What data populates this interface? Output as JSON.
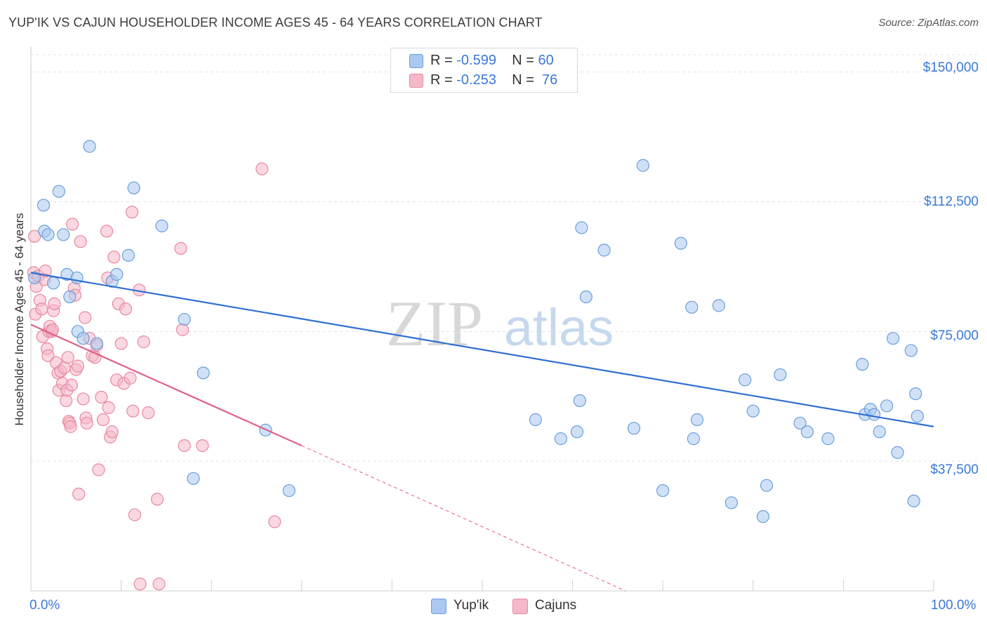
{
  "title": "YUP'IK VS CAJUN HOUSEHOLDER INCOME AGES 45 - 64 YEARS CORRELATION CHART",
  "source": "Source: ZipAtlas.com",
  "watermark": {
    "zip": "ZIP",
    "atlas": "atlas"
  },
  "legend": {
    "rows": [
      {
        "r_label": "R = ",
        "r_value": "-0.599",
        "n_label": "N = ",
        "n_value": "60",
        "color": "#aac8f0"
      },
      {
        "r_label": "R = ",
        "r_value": "-0.253",
        "n_label": "N = ",
        "n_value": "76",
        "color": "#f5b8c8"
      }
    ]
  },
  "bottom_legend": [
    {
      "label": "Yup'ik",
      "color": "#aac8f0"
    },
    {
      "label": "Cajuns",
      "color": "#f5b8c8"
    }
  ],
  "chart_data": {
    "type": "scatter",
    "title": "YUP'IK VS CAJUN HOUSEHOLDER INCOME AGES 45 - 64 YEARS CORRELATION CHART",
    "xlabel": "",
    "ylabel": "Householder Income Ages 45 - 64 years",
    "xlim": [
      0,
      100
    ],
    "ylim": [
      0,
      155000
    ],
    "x_tick_labels": [
      "0.0%",
      "100.0%"
    ],
    "y_ticks": [
      37500,
      75000,
      112500,
      150000
    ],
    "y_tick_labels": [
      "$37,500",
      "$75,000",
      "$112,500",
      "$150,000"
    ],
    "grid": true,
    "series": [
      {
        "name": "Yup'ik",
        "color": "#aac8f0",
        "stroke": "#6a9edc",
        "line_color": "#2f6fd0",
        "trend": {
          "x": [
            0,
            100
          ],
          "y": [
            92000,
            47500
          ],
          "dashed_to": null
        },
        "points": [
          [
            0.4,
            90500
          ],
          [
            1.5,
            104000
          ],
          [
            1.4,
            111500
          ],
          [
            1.9,
            103000
          ],
          [
            2.5,
            89000
          ],
          [
            3.1,
            115500
          ],
          [
            3.6,
            103000
          ],
          [
            4.0,
            91500
          ],
          [
            4.3,
            85000
          ],
          [
            5.1,
            90500
          ],
          [
            5.2,
            75000
          ],
          [
            5.8,
            73000
          ],
          [
            6.5,
            128500
          ],
          [
            7.3,
            71500
          ],
          [
            9.0,
            89500
          ],
          [
            9.5,
            91500
          ],
          [
            10.8,
            97000
          ],
          [
            11.4,
            116500
          ],
          [
            14.5,
            105500
          ],
          [
            17.0,
            78500
          ],
          [
            19.1,
            63000
          ],
          [
            18.0,
            32500
          ],
          [
            26.0,
            46500
          ],
          [
            28.6,
            29000
          ],
          [
            55.9,
            49500
          ],
          [
            58.7,
            44000
          ],
          [
            60.5,
            46000
          ],
          [
            60.8,
            55000
          ],
          [
            61.0,
            105000
          ],
          [
            61.5,
            85000
          ],
          [
            63.5,
            98500
          ],
          [
            66.8,
            47000
          ],
          [
            67.8,
            123000
          ],
          [
            70.0,
            29000
          ],
          [
            72.0,
            100500
          ],
          [
            73.2,
            82000
          ],
          [
            73.4,
            44000
          ],
          [
            73.8,
            49500
          ],
          [
            76.2,
            82500
          ],
          [
            77.6,
            25500
          ],
          [
            79.1,
            61000
          ],
          [
            80.0,
            52000
          ],
          [
            81.1,
            21500
          ],
          [
            81.5,
            30500
          ],
          [
            83.0,
            62500
          ],
          [
            85.2,
            48500
          ],
          [
            86.0,
            46000
          ],
          [
            88.3,
            44000
          ],
          [
            92.1,
            65500
          ],
          [
            92.4,
            51000
          ],
          [
            93.0,
            52500
          ],
          [
            93.4,
            51000
          ],
          [
            94.0,
            46000
          ],
          [
            94.8,
            53500
          ],
          [
            95.5,
            73000
          ],
          [
            96.0,
            40000
          ],
          [
            97.5,
            69500
          ],
          [
            97.8,
            26000
          ],
          [
            98.0,
            57000
          ],
          [
            98.2,
            50500
          ]
        ]
      },
      {
        "name": "Cajuns",
        "color": "#f5b8c8",
        "stroke": "#e8889f",
        "line_color": "#e0608a",
        "trend": {
          "x": [
            0,
            30
          ],
          "y": [
            77000,
            42000
          ],
          "dashed_to": {
            "x": 100,
            "y": -40000
          }
        },
        "points": [
          [
            0.3,
            92000
          ],
          [
            0.4,
            102500
          ],
          [
            0.5,
            80000
          ],
          [
            0.6,
            88000
          ],
          [
            0.8,
            91000
          ],
          [
            1.0,
            84000
          ],
          [
            1.2,
            81500
          ],
          [
            1.3,
            73500
          ],
          [
            1.5,
            90000
          ],
          [
            1.6,
            92500
          ],
          [
            1.8,
            70000
          ],
          [
            1.9,
            68000
          ],
          [
            2.0,
            75000
          ],
          [
            2.1,
            76500
          ],
          [
            2.3,
            75000
          ],
          [
            2.4,
            75500
          ],
          [
            2.5,
            81000
          ],
          [
            2.6,
            83000
          ],
          [
            2.8,
            66000
          ],
          [
            3.0,
            63000
          ],
          [
            3.1,
            58000
          ],
          [
            3.3,
            63500
          ],
          [
            3.5,
            60000
          ],
          [
            3.7,
            64500
          ],
          [
            3.9,
            55000
          ],
          [
            4.0,
            58000
          ],
          [
            4.1,
            67500
          ],
          [
            4.2,
            49000
          ],
          [
            4.3,
            48500
          ],
          [
            4.4,
            47500
          ],
          [
            4.5,
            59500
          ],
          [
            4.6,
            106000
          ],
          [
            4.8,
            87500
          ],
          [
            4.9,
            85500
          ],
          [
            5.0,
            64000
          ],
          [
            5.2,
            65000
          ],
          [
            5.3,
            28000
          ],
          [
            5.5,
            101000
          ],
          [
            5.8,
            55500
          ],
          [
            6.0,
            79000
          ],
          [
            6.1,
            50000
          ],
          [
            6.2,
            48500
          ],
          [
            6.5,
            73000
          ],
          [
            6.8,
            68000
          ],
          [
            7.1,
            67500
          ],
          [
            7.3,
            71000
          ],
          [
            7.5,
            35000
          ],
          [
            7.8,
            56000
          ],
          [
            8.0,
            49500
          ],
          [
            8.4,
            104000
          ],
          [
            8.5,
            90500
          ],
          [
            8.6,
            53000
          ],
          [
            8.8,
            44500
          ],
          [
            9.0,
            46000
          ],
          [
            9.2,
            96500
          ],
          [
            9.5,
            61000
          ],
          [
            9.7,
            83000
          ],
          [
            10.0,
            71500
          ],
          [
            10.3,
            60000
          ],
          [
            10.5,
            81500
          ],
          [
            11.0,
            61500
          ],
          [
            11.2,
            109500
          ],
          [
            11.3,
            52000
          ],
          [
            11.5,
            22000
          ],
          [
            12.0,
            87000
          ],
          [
            12.1,
            2000
          ],
          [
            12.5,
            72000
          ],
          [
            13.0,
            51500
          ],
          [
            14.0,
            26500
          ],
          [
            14.2,
            2000
          ],
          [
            16.6,
            99000
          ],
          [
            16.8,
            75500
          ],
          [
            17.0,
            42000
          ],
          [
            19.0,
            42000
          ],
          [
            25.6,
            122000
          ],
          [
            27.0,
            20000
          ]
        ]
      }
    ]
  }
}
